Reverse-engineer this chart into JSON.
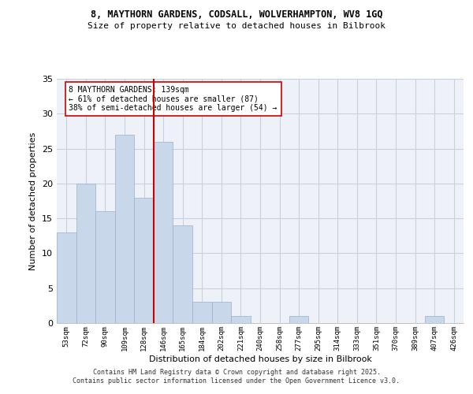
{
  "title1": "8, MAYTHORN GARDENS, CODSALL, WOLVERHAMPTON, WV8 1GQ",
  "title2": "Size of property relative to detached houses in Bilbrook",
  "xlabel": "Distribution of detached houses by size in Bilbrook",
  "ylabel": "Number of detached properties",
  "categories": [
    "53sqm",
    "72sqm",
    "90sqm",
    "109sqm",
    "128sqm",
    "146sqm",
    "165sqm",
    "184sqm",
    "202sqm",
    "221sqm",
    "240sqm",
    "258sqm",
    "277sqm",
    "295sqm",
    "314sqm",
    "333sqm",
    "351sqm",
    "370sqm",
    "389sqm",
    "407sqm",
    "426sqm"
  ],
  "values": [
    13,
    20,
    16,
    27,
    18,
    26,
    14,
    3,
    3,
    1,
    0,
    0,
    1,
    0,
    0,
    0,
    0,
    0,
    0,
    1,
    0
  ],
  "bar_color": "#c8d8ea",
  "bar_edge_color": "#9ab0c8",
  "bar_width": 1.0,
  "vline_x": 4.5,
  "vline_color": "#cc0000",
  "annotation_text": "8 MAYTHORN GARDENS: 139sqm\n← 61% of detached houses are smaller (87)\n38% of semi-detached houses are larger (54) →",
  "annotation_box_color": "#ffffff",
  "annotation_box_edge": "#cc0000",
  "ylim": [
    0,
    35
  ],
  "yticks": [
    0,
    5,
    10,
    15,
    20,
    25,
    30,
    35
  ],
  "grid_color": "#c8d0dc",
  "background_color": "#eef2f8",
  "footer1": "Contains HM Land Registry data © Crown copyright and database right 2025.",
  "footer2": "Contains public sector information licensed under the Open Government Licence v3.0."
}
